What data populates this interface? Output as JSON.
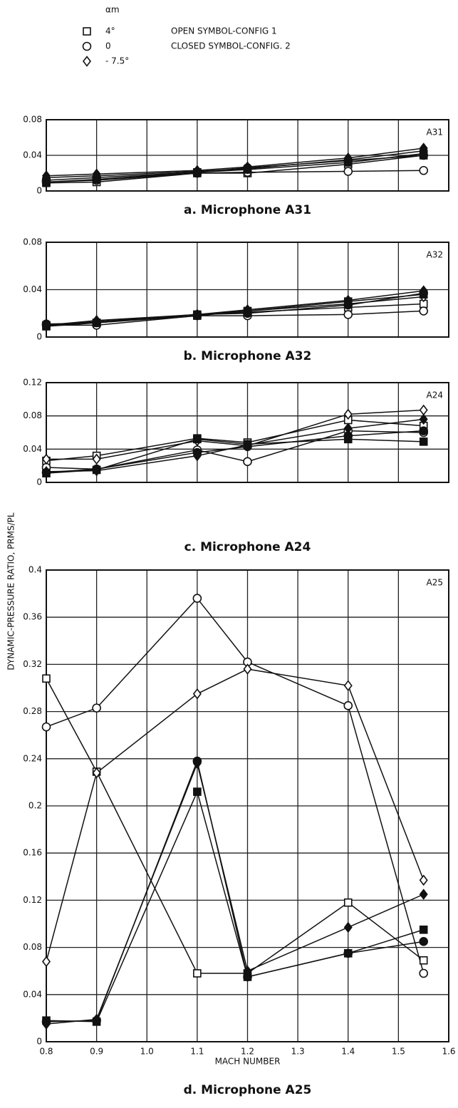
{
  "legend": {
    "title": "αm",
    "items": [
      {
        "marker": "square",
        "label": "4°"
      },
      {
        "marker": "circle",
        "label": "0"
      },
      {
        "marker": "diamond",
        "label": "- 7.5°"
      }
    ],
    "notes": [
      "OPEN SYMBOL-CONFIG 1",
      "CLOSED SYMBOL-CONFIG. 2"
    ]
  },
  "ylabel": "DYNAMIC-PRESSURE RATIO, PRMS/PL",
  "chart_data": [
    {
      "type": "line",
      "title": "a.  Microphone A31",
      "annotation": "A31",
      "color": "#111",
      "x": [
        0.8,
        0.9,
        1.1,
        1.2,
        1.4,
        1.55
      ],
      "xlim": [
        0.8,
        1.6
      ],
      "xticks": [
        0.8,
        0.9,
        {
          "value": 1,
          "label": "1.0"
        },
        1.1,
        1.2,
        1.3,
        1.4,
        1.5,
        1.6
      ],
      "ylim": [
        0,
        0.08
      ],
      "yticks": [
        0,
        0.04,
        0.08
      ],
      "grid": true,
      "series": [
        {
          "marker": "square",
          "filled": false,
          "values": [
            0.009,
            0.01,
            0.02,
            0.02,
            0.03,
            0.04
          ]
        },
        {
          "marker": "circle",
          "filled": false,
          "values": [
            0.01,
            0.012,
            0.02,
            0.021,
            0.022,
            0.023
          ]
        },
        {
          "marker": "diamond",
          "filled": false,
          "values": [
            0.015,
            0.017,
            0.022,
            0.025,
            0.035,
            0.045
          ]
        },
        {
          "marker": "square",
          "filled": true,
          "values": [
            0.01,
            0.013,
            0.021,
            0.024,
            0.032,
            0.042
          ]
        },
        {
          "marker": "circle",
          "filled": true,
          "values": [
            0.012,
            0.015,
            0.021,
            0.026,
            0.034,
            0.04
          ]
        },
        {
          "marker": "diamond",
          "filled": true,
          "values": [
            0.017,
            0.019,
            0.023,
            0.027,
            0.037,
            0.048
          ]
        }
      ]
    },
    {
      "type": "line",
      "title": "b.  Microphone A32",
      "annotation": "A32",
      "color": "#111",
      "x": [
        0.8,
        0.9,
        1.1,
        1.2,
        1.4,
        1.55
      ],
      "xlim": [
        0.8,
        1.6
      ],
      "xticks": [
        0.8,
        0.9,
        {
          "value": 1,
          "label": "1.0"
        },
        1.1,
        1.2,
        1.3,
        1.4,
        1.5,
        1.6
      ],
      "ylim": [
        0,
        0.08
      ],
      "yticks": [
        0,
        0.04,
        0.08
      ],
      "grid": true,
      "series": [
        {
          "marker": "square",
          "filled": false,
          "values": [
            0.01,
            0.012,
            0.019,
            0.021,
            0.025,
            0.028
          ]
        },
        {
          "marker": "circle",
          "filled": false,
          "values": [
            0.01,
            0.01,
            0.018,
            0.018,
            0.019,
            0.022
          ]
        },
        {
          "marker": "diamond",
          "filled": false,
          "values": [
            0.01,
            0.013,
            0.019,
            0.022,
            0.028,
            0.034
          ]
        },
        {
          "marker": "square",
          "filled": true,
          "values": [
            0.009,
            0.012,
            0.018,
            0.022,
            0.03,
            0.036
          ]
        },
        {
          "marker": "circle",
          "filled": true,
          "values": [
            0.011,
            0.012,
            0.019,
            0.02,
            0.027,
            0.037
          ]
        },
        {
          "marker": "diamond",
          "filled": true,
          "values": [
            0.01,
            0.014,
            0.019,
            0.023,
            0.031,
            0.039
          ]
        }
      ]
    },
    {
      "type": "line",
      "title": "c.  Microphone A24",
      "annotation": "A24",
      "color": "#111",
      "x": [
        0.8,
        0.9,
        1.1,
        1.2,
        1.4,
        1.55
      ],
      "xlim": [
        0.8,
        1.6
      ],
      "xticks": [
        0.8,
        0.9,
        {
          "value": 1,
          "label": "1.0"
        },
        1.1,
        1.2,
        1.3,
        1.4,
        1.5,
        1.6
      ],
      "ylim": [
        0,
        0.12
      ],
      "yticks": [
        0,
        0.04,
        0.08,
        0.12
      ],
      "grid": true,
      "series": [
        {
          "marker": "square",
          "filled": false,
          "values": [
            0.026,
            0.032,
            0.053,
            0.048,
            0.075,
            0.068
          ]
        },
        {
          "marker": "circle",
          "filled": false,
          "values": [
            0.018,
            0.016,
            0.039,
            0.025,
            0.062,
            0.06
          ]
        },
        {
          "marker": "diamond",
          "filled": false,
          "values": [
            0.028,
            0.028,
            0.05,
            0.044,
            0.082,
            0.087
          ]
        },
        {
          "marker": "square",
          "filled": true,
          "values": [
            0.011,
            0.015,
            0.052,
            0.046,
            0.052,
            0.049
          ]
        },
        {
          "marker": "circle",
          "filled": true,
          "values": [
            0.012,
            0.016,
            0.036,
            0.043,
            0.056,
            0.062
          ]
        },
        {
          "marker": "diamond",
          "filled": true,
          "values": [
            0.013,
            0.014,
            0.032,
            0.045,
            0.065,
            0.076
          ]
        }
      ]
    },
    {
      "type": "line",
      "title": "d.  Microphone A25",
      "annotation": "A25",
      "color": "#111",
      "xlabel": "MACH NUMBER",
      "xtick_labels": true,
      "x": [
        0.8,
        0.9,
        1.1,
        1.2,
        1.4,
        1.55
      ],
      "xlim": [
        0.8,
        1.6
      ],
      "xticks": [
        0.8,
        0.9,
        {
          "value": 1,
          "label": "1.0"
        },
        1.1,
        1.2,
        1.3,
        1.4,
        1.5,
        1.6
      ],
      "ylim": [
        0,
        0.4
      ],
      "yticks": [
        0,
        0.04,
        0.08,
        0.12,
        0.16,
        0.2,
        0.24,
        0.28,
        0.32,
        0.36,
        0.4
      ],
      "grid": true,
      "series": [
        {
          "marker": "square",
          "filled": false,
          "values": [
            0.308,
            0.229,
            0.058,
            0.058,
            0.118,
            0.069
          ]
        },
        {
          "marker": "circle",
          "filled": false,
          "values": [
            0.267,
            0.283,
            0.376,
            0.322,
            0.285,
            0.058
          ]
        },
        {
          "marker": "diamond",
          "filled": false,
          "values": [
            0.068,
            0.228,
            0.295,
            0.316,
            0.302,
            0.137
          ]
        },
        {
          "marker": "square",
          "filled": true,
          "values": [
            0.018,
            0.017,
            0.212,
            0.055,
            0.075,
            0.095
          ]
        },
        {
          "marker": "circle",
          "filled": true,
          "values": [
            0.017,
            0.018,
            0.238,
            0.055,
            0.075,
            0.085
          ]
        },
        {
          "marker": "diamond",
          "filled": true,
          "values": [
            0.015,
            0.019,
            0.236,
            0.06,
            0.097,
            0.125
          ]
        }
      ]
    }
  ]
}
